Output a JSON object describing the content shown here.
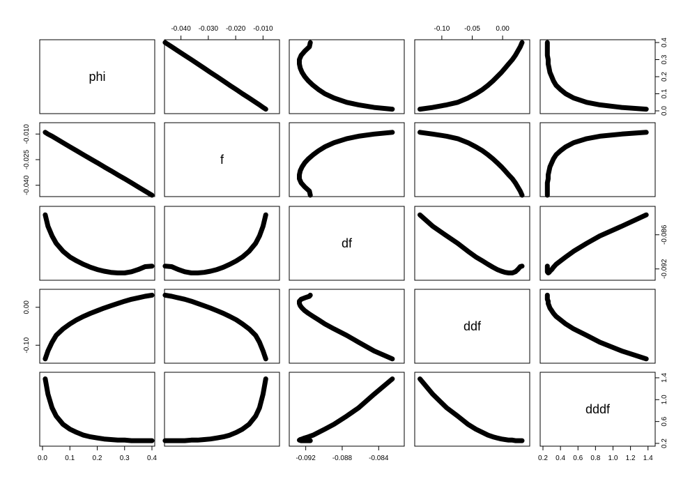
{
  "chart_data": {
    "type": "scatter",
    "variables": [
      {
        "name": "phi",
        "range": [
          0.0,
          0.4
        ],
        "ticks": [
          0.0,
          0.1,
          0.2,
          0.3,
          0.4
        ],
        "tick_labels": [
          "0.0",
          "0.1",
          "0.2",
          "0.3",
          "0.4"
        ]
      },
      {
        "name": "f",
        "range": [
          -0.045,
          -0.005
        ],
        "ticks": [
          -0.04,
          -0.03,
          -0.02,
          -0.01
        ],
        "tick_labels": [
          "-0.040",
          "-0.030",
          "-0.020",
          "-0.010"
        ],
        "left_ticks": [
          -0.04,
          -0.025,
          -0.01
        ],
        "left_tick_labels": [
          "-0.040",
          "-0.025",
          "-0.010"
        ]
      },
      {
        "name": "df",
        "range": [
          -0.0935,
          -0.0815
        ],
        "ticks": [
          -0.092,
          -0.088,
          -0.084
        ],
        "tick_labels": [
          "-0.092",
          "-0.088",
          "-0.084"
        ],
        "right_ticks": [
          -0.092,
          -0.086
        ],
        "right_tick_labels": [
          "-0.092",
          "-0.086"
        ]
      },
      {
        "name": "ddf",
        "range": [
          -0.14,
          0.04
        ],
        "ticks": [
          -0.1,
          -0.05,
          0.0
        ],
        "tick_labels": [
          "-0.10",
          "-0.05",
          "0.00"
        ],
        "left_ticks": [
          -0.1,
          0.0
        ],
        "left_tick_labels": [
          "-0.10",
          "0.00"
        ]
      },
      {
        "name": "dddf",
        "range": [
          0.2,
          1.45
        ],
        "ticks": [
          0.2,
          0.4,
          0.6,
          0.8,
          1.0,
          1.2,
          1.4
        ],
        "tick_labels": [
          "0.2",
          "0.4",
          "0.6",
          "0.8",
          "1.0",
          "1.2",
          "1.4"
        ],
        "right_ticks": [
          0.2,
          0.6,
          1.0,
          1.4
        ],
        "right_tick_labels": [
          "0.2",
          "0.6",
          "1.0",
          "1.4"
        ]
      }
    ],
    "points": {
      "phi": [
        0.01,
        0.02,
        0.035,
        0.05,
        0.075,
        0.1,
        0.125,
        0.15,
        0.175,
        0.2,
        0.225,
        0.25,
        0.275,
        0.3,
        0.325,
        0.35,
        0.375,
        0.4
      ],
      "f": [
        -0.009,
        -0.01,
        -0.0113,
        -0.0127,
        -0.0151,
        -0.0175,
        -0.0198,
        -0.0222,
        -0.0245,
        -0.0268,
        -0.0292,
        -0.0315,
        -0.0339,
        -0.0362,
        -0.0386,
        -0.041,
        -0.0434,
        -0.0458
      ],
      "df": [
        -0.0825,
        -0.0845,
        -0.0862,
        -0.0875,
        -0.0889,
        -0.0899,
        -0.0906,
        -0.0912,
        -0.0917,
        -0.0921,
        -0.0924,
        -0.0926,
        -0.0927,
        -0.0927,
        -0.0925,
        -0.0921,
        -0.0916,
        -0.0915
      ],
      "ddf": [
        -0.136,
        -0.115,
        -0.092,
        -0.074,
        -0.057,
        -0.044,
        -0.033,
        -0.024,
        -0.016,
        -0.009,
        -0.002,
        0.004,
        0.01,
        0.016,
        0.021,
        0.025,
        0.029,
        0.032
      ],
      "dddf": [
        1.38,
        1.1,
        0.85,
        0.7,
        0.55,
        0.46,
        0.4,
        0.35,
        0.32,
        0.3,
        0.28,
        0.27,
        0.26,
        0.26,
        0.25,
        0.25,
        0.25,
        0.25
      ]
    },
    "grid": false,
    "legend": "none"
  }
}
